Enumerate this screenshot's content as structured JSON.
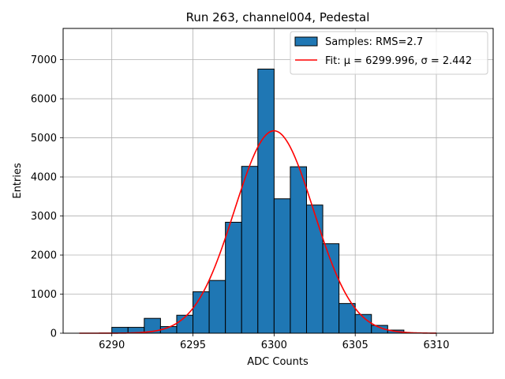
{
  "chart_data": {
    "type": "histogram",
    "title": "Run 263, channel004, Pedestal",
    "xlabel": "ADC Counts",
    "ylabel": "Entries",
    "xlim": [
      6287,
      6313.5
    ],
    "ylim": [
      0,
      7800
    ],
    "xticks": [
      6290,
      6295,
      6300,
      6305,
      6310
    ],
    "yticks": [
      0,
      1000,
      2000,
      3000,
      4000,
      5000,
      6000,
      7000
    ],
    "grid": true,
    "legend_position": "top-right",
    "bins": [
      {
        "left": 6290,
        "right": 6291,
        "value": 150
      },
      {
        "left": 6291,
        "right": 6292,
        "value": 150
      },
      {
        "left": 6292,
        "right": 6293,
        "value": 380
      },
      {
        "left": 6293,
        "right": 6294,
        "value": 170
      },
      {
        "left": 6294,
        "right": 6295,
        "value": 460
      },
      {
        "left": 6295,
        "right": 6296,
        "value": 1060
      },
      {
        "left": 6296,
        "right": 6297,
        "value": 1350
      },
      {
        "left": 6297,
        "right": 6298,
        "value": 2840
      },
      {
        "left": 6298,
        "right": 6299,
        "value": 4270
      },
      {
        "left": 6299,
        "right": 6300,
        "value": 6760
      },
      {
        "left": 6300,
        "right": 6301,
        "value": 3440
      },
      {
        "left": 6301,
        "right": 6302,
        "value": 4260
      },
      {
        "left": 6302,
        "right": 6303,
        "value": 3280
      },
      {
        "left": 6303,
        "right": 6304,
        "value": 2290
      },
      {
        "left": 6304,
        "right": 6305,
        "value": 760
      },
      {
        "left": 6305,
        "right": 6306,
        "value": 480
      },
      {
        "left": 6306,
        "right": 6307,
        "value": 200
      },
      {
        "left": 6307,
        "right": 6308,
        "value": 80
      }
    ],
    "fit": {
      "mu": 6299.996,
      "sigma": 2.442,
      "amplitude": 5180,
      "x_range": [
        6288,
        6310
      ]
    },
    "series": [
      {
        "name": "Samples: RMS=2.7",
        "kind": "bars",
        "color": "#1f77b4"
      },
      {
        "name": "Fit: μ = 6299.996, σ = 2.442",
        "kind": "line",
        "color": "#ff0000"
      }
    ]
  }
}
